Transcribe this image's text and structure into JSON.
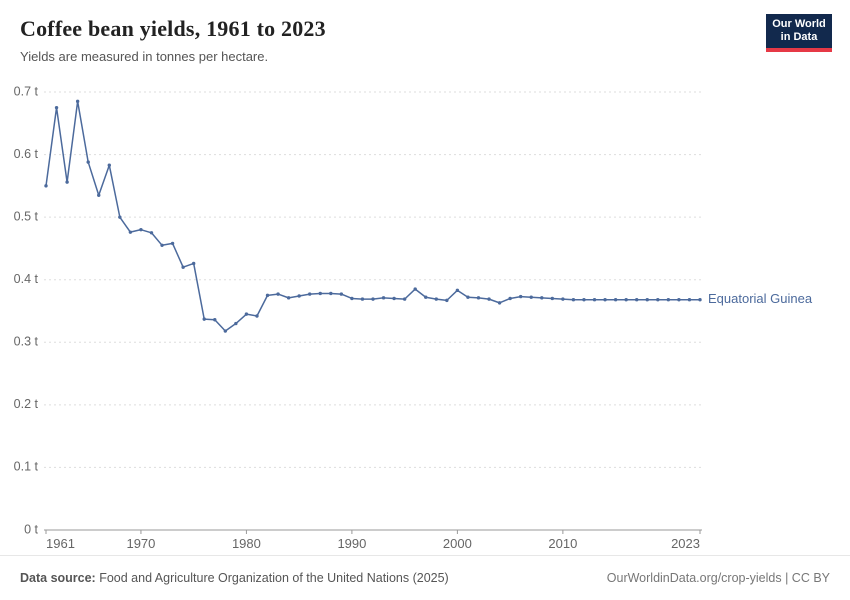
{
  "header": {
    "title": "Coffee bean yields, 1961 to 2023",
    "subtitle": "Yields are measured in tonnes per hectare.",
    "logo_line1": "Our World",
    "logo_line2": "in Data"
  },
  "colors": {
    "logo_bg": "#12294d",
    "logo_accent": "#e63946",
    "line": "#4C6A9C",
    "grid": "#dddddd",
    "axis": "#999999",
    "tick_text": "#666666"
  },
  "chart_data": {
    "type": "line",
    "title": "Coffee bean yields, 1961 to 2023",
    "xlabel": "",
    "ylabel": "tonnes per hectare",
    "ylim": [
      0,
      0.7
    ],
    "grid": "horizontal-dashed",
    "legend_position": "right-end-label",
    "yticks": [
      {
        "v": 0,
        "label": "0 t"
      },
      {
        "v": 0.1,
        "label": "0.1 t"
      },
      {
        "v": 0.2,
        "label": "0.2 t"
      },
      {
        "v": 0.3,
        "label": "0.3 t"
      },
      {
        "v": 0.4,
        "label": "0.4 t"
      },
      {
        "v": 0.5,
        "label": "0.5 t"
      },
      {
        "v": 0.6,
        "label": "0.6 t"
      },
      {
        "v": 0.7,
        "label": "0.7 t"
      }
    ],
    "xticks": [
      1961,
      1970,
      1980,
      1990,
      2000,
      2010,
      2023
    ],
    "x": [
      1961,
      1962,
      1963,
      1964,
      1965,
      1966,
      1967,
      1968,
      1969,
      1970,
      1971,
      1972,
      1973,
      1974,
      1975,
      1976,
      1977,
      1978,
      1979,
      1980,
      1981,
      1982,
      1983,
      1984,
      1985,
      1986,
      1987,
      1988,
      1989,
      1990,
      1991,
      1992,
      1993,
      1994,
      1995,
      1996,
      1997,
      1998,
      1999,
      2000,
      2001,
      2002,
      2003,
      2004,
      2005,
      2006,
      2007,
      2008,
      2009,
      2010,
      2011,
      2012,
      2013,
      2014,
      2015,
      2016,
      2017,
      2018,
      2019,
      2020,
      2021,
      2022,
      2023
    ],
    "series": [
      {
        "name": "Equatorial Guinea",
        "color": "#4C6A9C",
        "values": [
          0.55,
          0.675,
          0.556,
          0.685,
          0.588,
          0.535,
          0.583,
          0.5,
          0.476,
          0.48,
          0.475,
          0.455,
          0.458,
          0.42,
          0.426,
          0.337,
          0.336,
          0.318,
          0.33,
          0.345,
          0.342,
          0.375,
          0.377,
          0.371,
          0.374,
          0.377,
          0.378,
          0.378,
          0.377,
          0.37,
          0.369,
          0.369,
          0.371,
          0.37,
          0.369,
          0.385,
          0.372,
          0.369,
          0.367,
          0.383,
          0.372,
          0.371,
          0.369,
          0.363,
          0.37,
          0.373,
          0.372,
          0.371,
          0.37,
          0.369,
          0.368,
          0.368,
          0.368,
          0.368,
          0.368,
          0.368,
          0.368,
          0.368,
          0.368,
          0.368,
          0.368,
          0.368,
          0.368
        ]
      }
    ]
  },
  "footer": {
    "source_label": "Data source:",
    "source_text": " Food and Agriculture Organization of the United Nations (2025)",
    "link_text": "OurWorldinData.org/crop-yields | CC BY"
  }
}
